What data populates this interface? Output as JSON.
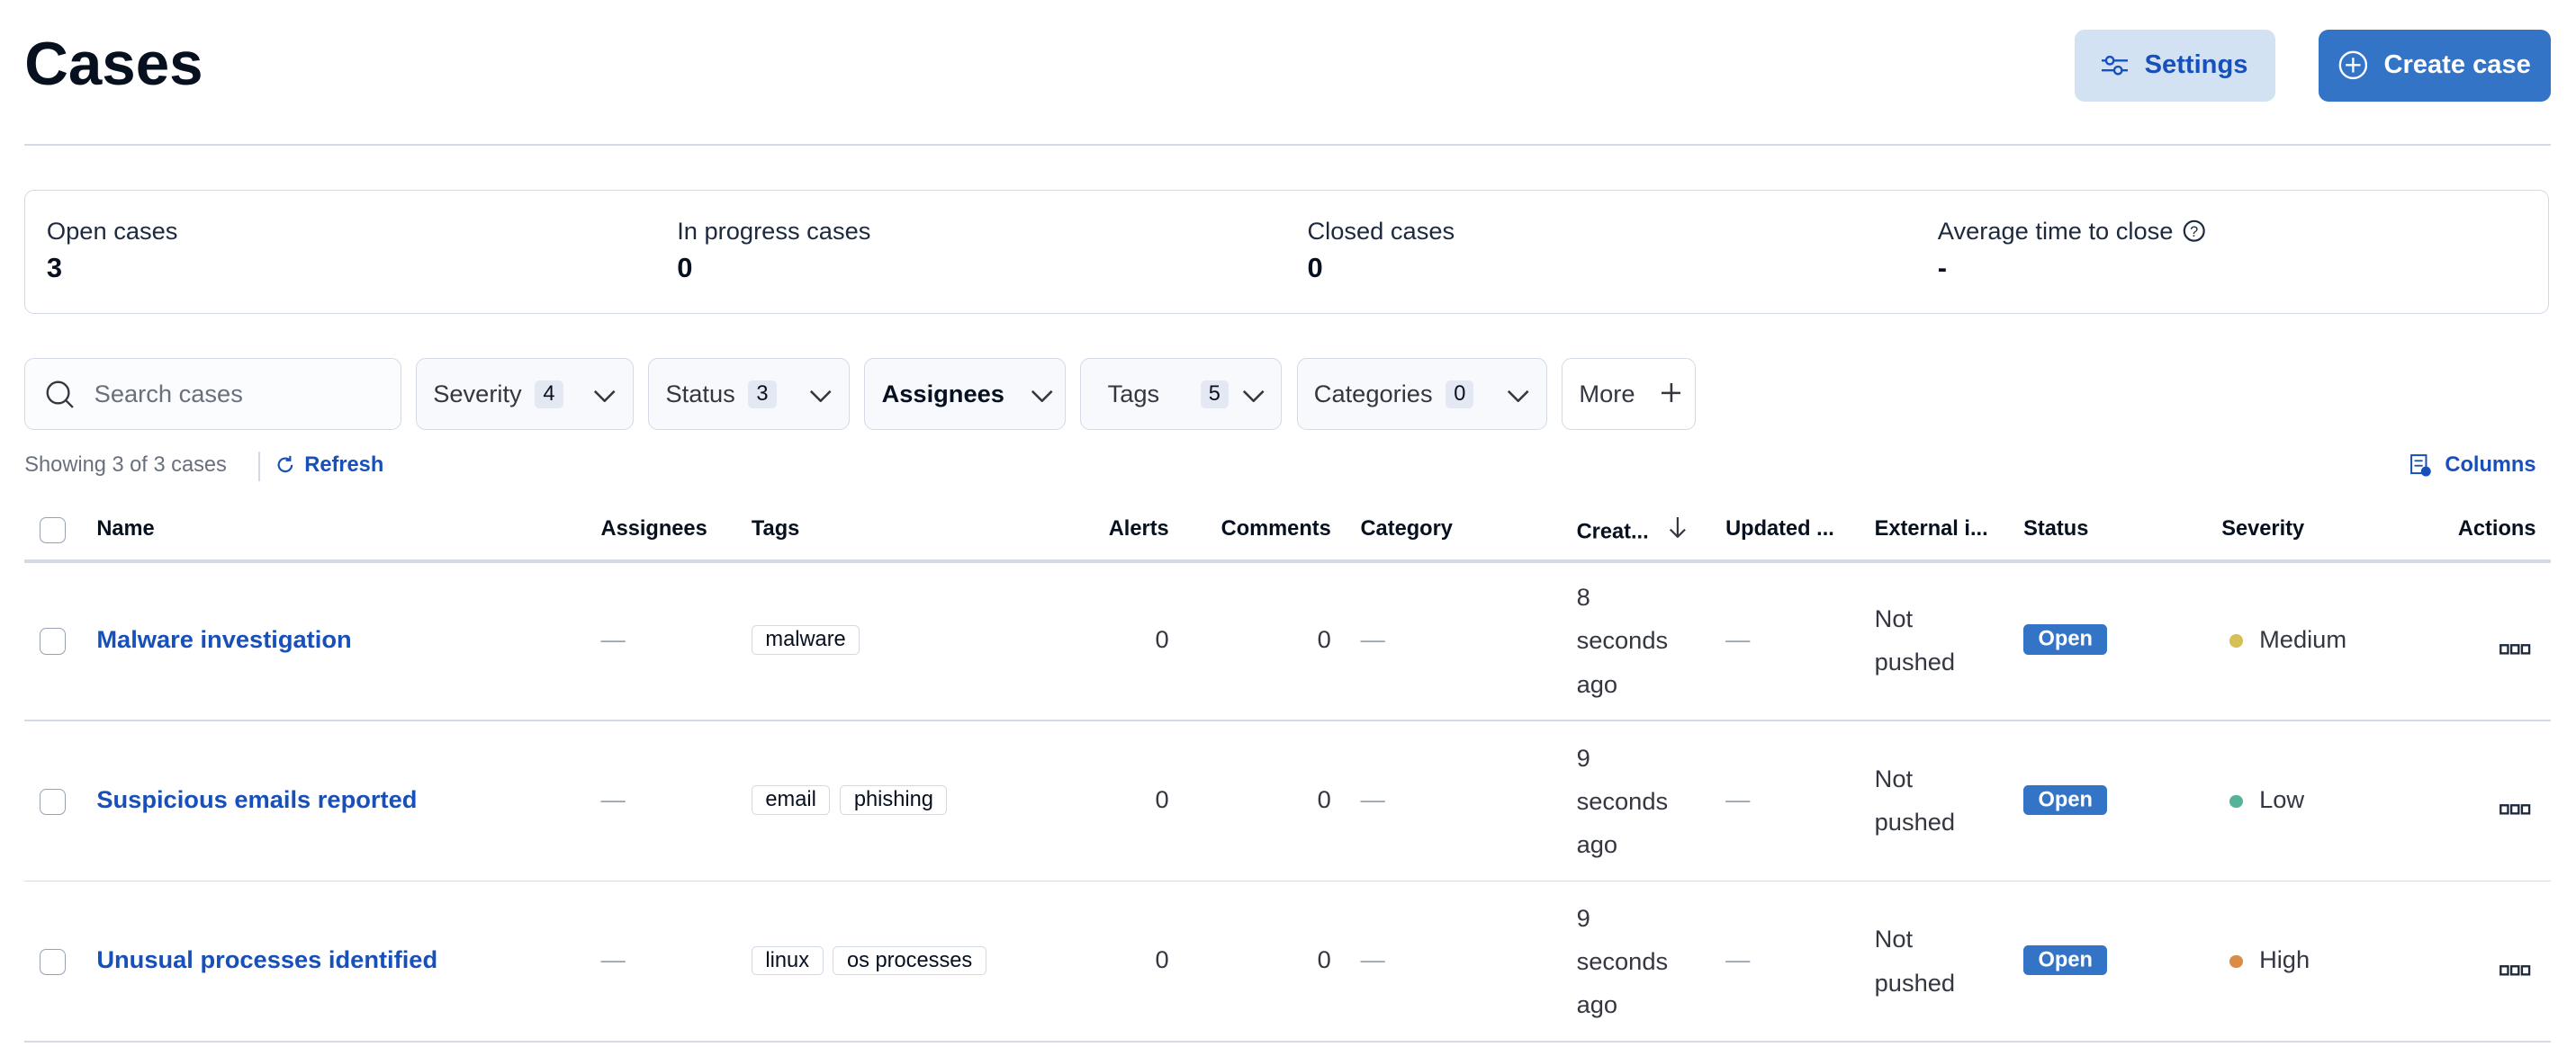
{
  "header": {
    "title": "Cases",
    "settings_label": "Settings",
    "create_label": "Create case"
  },
  "stats": [
    {
      "label": "Open cases",
      "value": "3"
    },
    {
      "label": "In progress cases",
      "value": "0"
    },
    {
      "label": "Closed cases",
      "value": "0"
    },
    {
      "label": "Average time to close",
      "value": "-"
    }
  ],
  "filters": {
    "search_placeholder": "Search cases",
    "severity": {
      "label": "Severity",
      "count": "4"
    },
    "status": {
      "label": "Status",
      "count": "3"
    },
    "assignees": {
      "label": "Assignees"
    },
    "tags": {
      "label": "Tags",
      "count": "5"
    },
    "categories": {
      "label": "Categories",
      "count": "0"
    },
    "more": {
      "label": "More"
    }
  },
  "toolbar": {
    "showing": "Showing 3 of 3 cases",
    "refresh": "Refresh",
    "columns": "Columns"
  },
  "table": {
    "headers": {
      "name": "Name",
      "assignees": "Assignees",
      "tags": "Tags",
      "alerts": "Alerts",
      "comments": "Comments",
      "category": "Category",
      "created": "Creat...",
      "updated": "Updated ...",
      "external": "External i...",
      "status": "Status",
      "severity": "Severity",
      "actions": "Actions"
    },
    "rows": [
      {
        "name": "Malware investigation",
        "assignees": "—",
        "tags": [
          "malware"
        ],
        "alerts": "0",
        "comments": "0",
        "category": "—",
        "created": [
          "8",
          "seconds",
          "ago"
        ],
        "updated": "—",
        "external": [
          "Not",
          "pushed"
        ],
        "status": "Open",
        "severity": "Medium",
        "severity_color": "#d6bf57"
      },
      {
        "name": "Suspicious emails reported",
        "assignees": "—",
        "tags": [
          "email",
          "phishing"
        ],
        "alerts": "0",
        "comments": "0",
        "category": "—",
        "created": [
          "9",
          "seconds",
          "ago"
        ],
        "updated": "—",
        "external": [
          "Not",
          "pushed"
        ],
        "status": "Open",
        "severity": "Low",
        "severity_color": "#54b399"
      },
      {
        "name": "Unusual processes identified",
        "assignees": "—",
        "tags": [
          "linux",
          "os processes"
        ],
        "alerts": "0",
        "comments": "0",
        "category": "—",
        "created": [
          "9",
          "seconds",
          "ago"
        ],
        "updated": "—",
        "external": [
          "Not",
          "pushed"
        ],
        "status": "Open",
        "severity": "High",
        "severity_color": "#da8b45"
      }
    ]
  },
  "colors": {
    "primary": "#3474c7",
    "link": "#1750ba",
    "border": "#d3dae6"
  }
}
